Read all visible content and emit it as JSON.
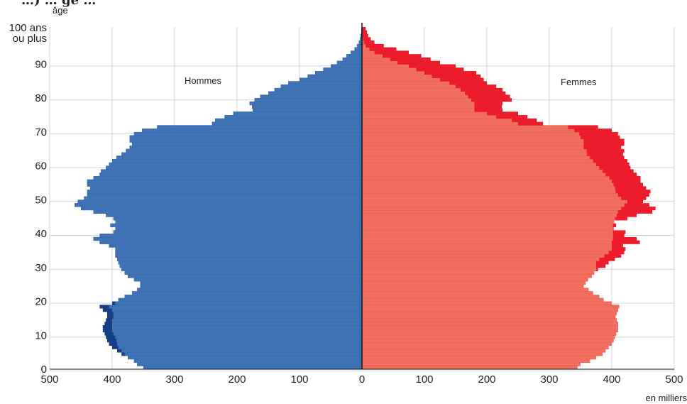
{
  "chart_data": {
    "type": "bar",
    "orientation": "horizontal-population-pyramid",
    "clipped_title": "…) … ge …",
    "ylabel": "âge",
    "xlabel": "en milliers",
    "xlim": [
      -500,
      500
    ],
    "ylim": [
      0,
      100
    ],
    "grid": true,
    "x_ticks": [
      {
        "value": -500,
        "label": "500"
      },
      {
        "value": -400,
        "label": "400"
      },
      {
        "value": -300,
        "label": "300"
      },
      {
        "value": -200,
        "label": "200"
      },
      {
        "value": -100,
        "label": "100"
      },
      {
        "value": 0,
        "label": "0"
      },
      {
        "value": 100,
        "label": "100"
      },
      {
        "value": 200,
        "label": "200"
      },
      {
        "value": 300,
        "label": "300"
      },
      {
        "value": 400,
        "label": "400"
      },
      {
        "value": 500,
        "label": "500"
      }
    ],
    "y_ticks": [
      {
        "value": 0,
        "label": "0"
      },
      {
        "value": 10,
        "label": "10"
      },
      {
        "value": 20,
        "label": "20"
      },
      {
        "value": 30,
        "label": "30"
      },
      {
        "value": 40,
        "label": "40"
      },
      {
        "value": 50,
        "label": "50"
      },
      {
        "value": 60,
        "label": "60"
      },
      {
        "value": 70,
        "label": "70"
      },
      {
        "value": 80,
        "label": "80"
      },
      {
        "value": 90,
        "label": "90"
      }
    ],
    "top_age_label": [
      "100 ans",
      "ou plus"
    ],
    "annotations": {
      "left": "Hommes",
      "right": "Femmes"
    },
    "colors": {
      "men_light": "#3f72b5",
      "men_dark": "#163e86",
      "women_light": "#f26e5f",
      "women_dark": "#ec1c2c",
      "grid": "#cfd6e6",
      "axis": "#111111"
    },
    "ages": [
      0,
      1,
      2,
      3,
      4,
      5,
      6,
      7,
      8,
      9,
      10,
      11,
      12,
      13,
      14,
      15,
      16,
      17,
      18,
      19,
      20,
      21,
      22,
      23,
      24,
      25,
      26,
      27,
      28,
      29,
      30,
      31,
      32,
      33,
      34,
      35,
      36,
      37,
      38,
      39,
      40,
      41,
      42,
      43,
      44,
      45,
      46,
      47,
      48,
      49,
      50,
      51,
      52,
      53,
      54,
      55,
      56,
      57,
      58,
      59,
      60,
      61,
      62,
      63,
      64,
      65,
      66,
      67,
      68,
      69,
      70,
      71,
      72,
      73,
      74,
      75,
      76,
      77,
      78,
      79,
      80,
      81,
      82,
      83,
      84,
      85,
      86,
      87,
      88,
      89,
      90,
      91,
      92,
      93,
      94,
      95,
      96,
      97,
      98,
      99,
      100
    ],
    "series": [
      {
        "name": "Hommes",
        "values": [
          350,
          360,
          365,
          375,
          385,
          392,
          400,
          405,
          408,
          410,
          412,
          415,
          415,
          412,
          410,
          408,
          408,
          415,
          420,
          400,
          390,
          380,
          368,
          360,
          355,
          355,
          365,
          375,
          380,
          385,
          388,
          390,
          392,
          395,
          395,
          395,
          405,
          420,
          430,
          420,
          398,
          395,
          403,
          395,
          398,
          410,
          430,
          450,
          460,
          455,
          445,
          440,
          440,
          435,
          440,
          440,
          430,
          420,
          418,
          410,
          405,
          400,
          393,
          385,
          378,
          372,
          368,
          372,
          372,
          365,
          352,
          328,
          240,
          235,
          220,
          206,
          175,
          176,
          180,
          172,
          163,
          150,
          140,
          130,
          118,
          100,
          87,
          75,
          62,
          50,
          40,
          31,
          25,
          18,
          12,
          8,
          5,
          3,
          2,
          1,
          1
        ],
        "inner_values": [
          350,
          360,
          365,
          375,
          380,
          385,
          390,
          392,
          393,
          395,
          398,
          400,
          400,
          400,
          400,
          398,
          398,
          400,
          405,
          395,
          390,
          380,
          368,
          360,
          355,
          355,
          365,
          375,
          380,
          385,
          388,
          390,
          392,
          395,
          395,
          395,
          405,
          420,
          430,
          420,
          398,
          395,
          403,
          395,
          398,
          410,
          430,
          450,
          460,
          455,
          445,
          440,
          440,
          435,
          440,
          440,
          430,
          420,
          418,
          410,
          405,
          400,
          393,
          385,
          378,
          372,
          368,
          372,
          372,
          365,
          352,
          328,
          240,
          235,
          220,
          206,
          175,
          176,
          180,
          172,
          163,
          150,
          140,
          130,
          118,
          100,
          87,
          75,
          62,
          50,
          40,
          31,
          25,
          18,
          12,
          8,
          5,
          3,
          2,
          1,
          1
        ]
      },
      {
        "name": "Femmes",
        "values": [
          345,
          350,
          365,
          375,
          385,
          390,
          395,
          400,
          403,
          405,
          407,
          410,
          410,
          410,
          408,
          406,
          408,
          410,
          412,
          400,
          387,
          380,
          370,
          363,
          355,
          358,
          362,
          368,
          372,
          378,
          390,
          395,
          405,
          415,
          420,
          422,
          418,
          445,
          440,
          420,
          422,
          403,
          407,
          400,
          425,
          440,
          465,
          470,
          460,
          450,
          455,
          460,
          462,
          455,
          450,
          446,
          446,
          440,
          435,
          430,
          428,
          425,
          420,
          418,
          420,
          415,
          420,
          420,
          413,
          410,
          400,
          378,
          290,
          280,
          265,
          250,
          225,
          224,
          225,
          240,
          237,
          230,
          225,
          215,
          200,
          195,
          190,
          183,
          163,
          150,
          125,
          110,
          95,
          75,
          55,
          35,
          20,
          14,
          10,
          8,
          6
        ],
        "inner_values": [
          345,
          350,
          365,
          375,
          385,
          390,
          395,
          400,
          403,
          405,
          407,
          410,
          410,
          410,
          408,
          406,
          408,
          410,
          412,
          400,
          387,
          380,
          370,
          363,
          355,
          358,
          362,
          368,
          372,
          375,
          375,
          375,
          380,
          388,
          395,
          400,
          400,
          400,
          402,
          402,
          402,
          402,
          402,
          404,
          405,
          408,
          410,
          415,
          420,
          425,
          415,
          410,
          406,
          405,
          403,
          400,
          396,
          390,
          385,
          380,
          375,
          370,
          365,
          360,
          360,
          355,
          355,
          355,
          350,
          348,
          340,
          330,
          250,
          240,
          215,
          200,
          180,
          180,
          180,
          175,
          170,
          165,
          158,
          150,
          140,
          125,
          112,
          100,
          87,
          75,
          57,
          45,
          33,
          20,
          12,
          6,
          3,
          2,
          1,
          1,
          1
        ]
      }
    ]
  }
}
